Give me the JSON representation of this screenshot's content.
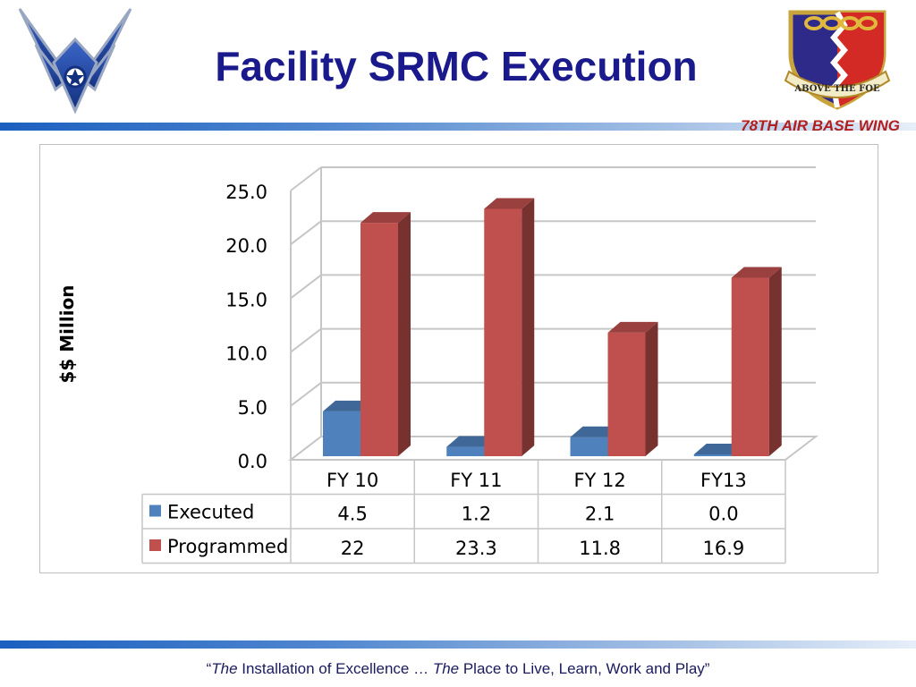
{
  "slide": {
    "title": "Facility SRMC Execution",
    "wing_label": "78TH AIR BASE WING",
    "footer": {
      "q1": "“",
      "em1": "The",
      "mid": " Installation of Excellence … ",
      "em2": "The",
      "rest": " Place to Live, Learn, Work and Play”"
    },
    "crest_motto": "ABOVE THE FOE",
    "colors": {
      "title": "#1a1a8c",
      "wing_label": "#b01e1e",
      "bar_accent": "#1b5fbf"
    }
  },
  "chart_data": {
    "type": "bar",
    "ylabel": "$$ Million",
    "ylim": [
      0,
      25
    ],
    "yticks": [
      "0.0",
      "5.0",
      "10.0",
      "15.0",
      "20.0",
      "25.0"
    ],
    "categories": [
      "FY 10",
      "FY 11",
      "FY 12",
      "FY13"
    ],
    "series": [
      {
        "name": "Executed",
        "values": [
          4.5,
          1.2,
          2.1,
          0.0
        ],
        "labels": [
          "4.5",
          "1.2",
          "2.1",
          "0.0"
        ],
        "color": "#4f81bd"
      },
      {
        "name": "Programmed",
        "values": [
          22,
          23.3,
          11.8,
          16.9
        ],
        "labels": [
          "22",
          "23.3",
          "11.8",
          "16.9"
        ],
        "color": "#c0504d"
      }
    ],
    "grid": true,
    "data_table": true,
    "three_d": true
  }
}
